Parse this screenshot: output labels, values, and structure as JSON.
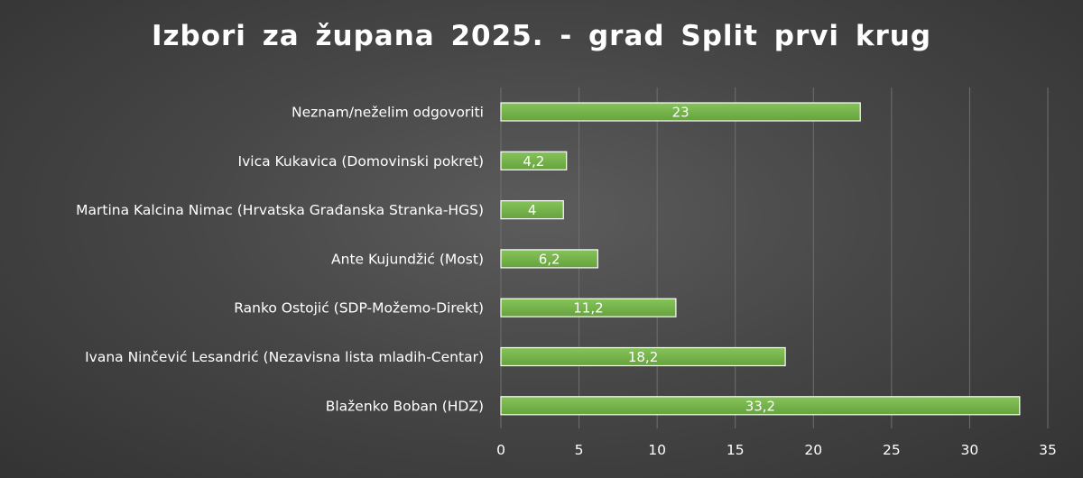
{
  "chart_data": {
    "type": "bar",
    "orientation": "horizontal",
    "title": "Izbori za župana 2025. - grad Split prvi krug",
    "categories": [
      "Neznam/neželim odgovoriti",
      "Ivica Kukavica (Domovinski pokret)",
      "Martina Kalcina Nimac (Hrvatska Građanska Stranka-HGS)",
      "Ante Kujundžić (Most)",
      "Ranko Ostojić (SDP-Možemo-Direkt)",
      "Ivana Ninčević Lesandrić (Nezavisna lista mladih-Centar)",
      "Blaženko Boban (HDZ)"
    ],
    "values": [
      23,
      4.2,
      4,
      6.2,
      11.2,
      18.2,
      33.2
    ],
    "data_labels": [
      "23",
      "4,2",
      "4",
      "6,2",
      "11,2",
      "18,2",
      "33,2"
    ],
    "xlim": [
      0,
      35
    ],
    "xticks": [
      0,
      5,
      10,
      15,
      20,
      25,
      30,
      35
    ],
    "xlabel": "",
    "ylabel": "",
    "grid": "vertical",
    "legend": "none",
    "colors": {
      "bar_fill": "#70ad47",
      "bar_fill_light": "#86c45a",
      "bar_border": "#ffffff",
      "gridline": "#6f6f6f",
      "text": "#ffffff"
    }
  }
}
